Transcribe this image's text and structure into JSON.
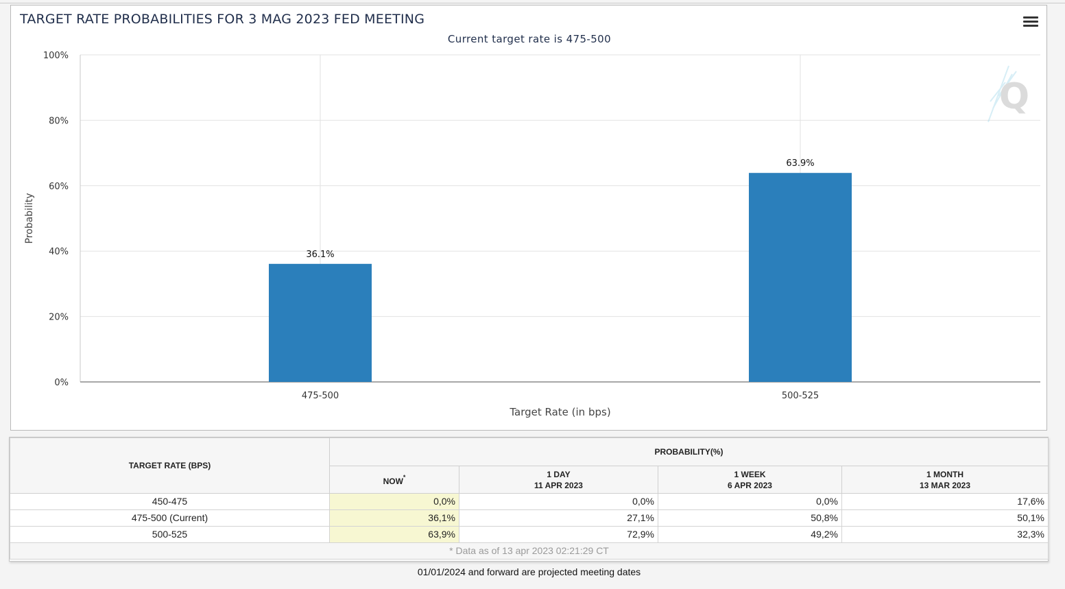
{
  "chart": {
    "title": "TARGET RATE PROBABILITIES FOR 3 MAG 2023 FED MEETING",
    "subtitle": "Current target rate is 475-500"
  },
  "chart_data": {
    "type": "bar",
    "categories": [
      "475-500",
      "500-525"
    ],
    "values": [
      36.1,
      63.9
    ],
    "data_labels": [
      "36.1%",
      "63.9%"
    ],
    "xlabel": "Target Rate (in bps)",
    "ylabel": "Probability",
    "ylim": [
      0,
      100
    ],
    "yticks": [
      "0%",
      "20%",
      "40%",
      "60%",
      "80%",
      "100%"
    ],
    "grid": true,
    "bar_color": "#2b7fbb"
  },
  "table": {
    "header_target": "TARGET RATE (BPS)",
    "header_probability": "PROBABILITY(%)",
    "columns": [
      {
        "label": "NOW",
        "sup": "*",
        "date": ""
      },
      {
        "label": "1 DAY",
        "date": "11 APR 2023"
      },
      {
        "label": "1 WEEK",
        "date": "6 APR 2023"
      },
      {
        "label": "1 MONTH",
        "date": "13 MAR 2023"
      }
    ],
    "rows": [
      {
        "rate": "450-475",
        "now": "0,0%",
        "day": "0,0%",
        "week": "0,0%",
        "month": "17,6%"
      },
      {
        "rate": "475-500 (Current)",
        "now": "36,1%",
        "day": "27,1%",
        "week": "50,8%",
        "month": "50,1%"
      },
      {
        "rate": "500-525",
        "now": "63,9%",
        "day": "72,9%",
        "week": "49,2%",
        "month": "32,3%"
      }
    ],
    "footnote": "* Data as of 13 apr 2023 02:21:29 CT"
  },
  "bottom_note": "01/01/2024 and forward are projected meeting dates",
  "colors": {
    "now_highlight": "#f7f7d2",
    "title": "#1f2d4a"
  },
  "icons": {
    "menu": "hamburger-menu-icon",
    "watermark": "quikstrike-q-logo-icon"
  }
}
